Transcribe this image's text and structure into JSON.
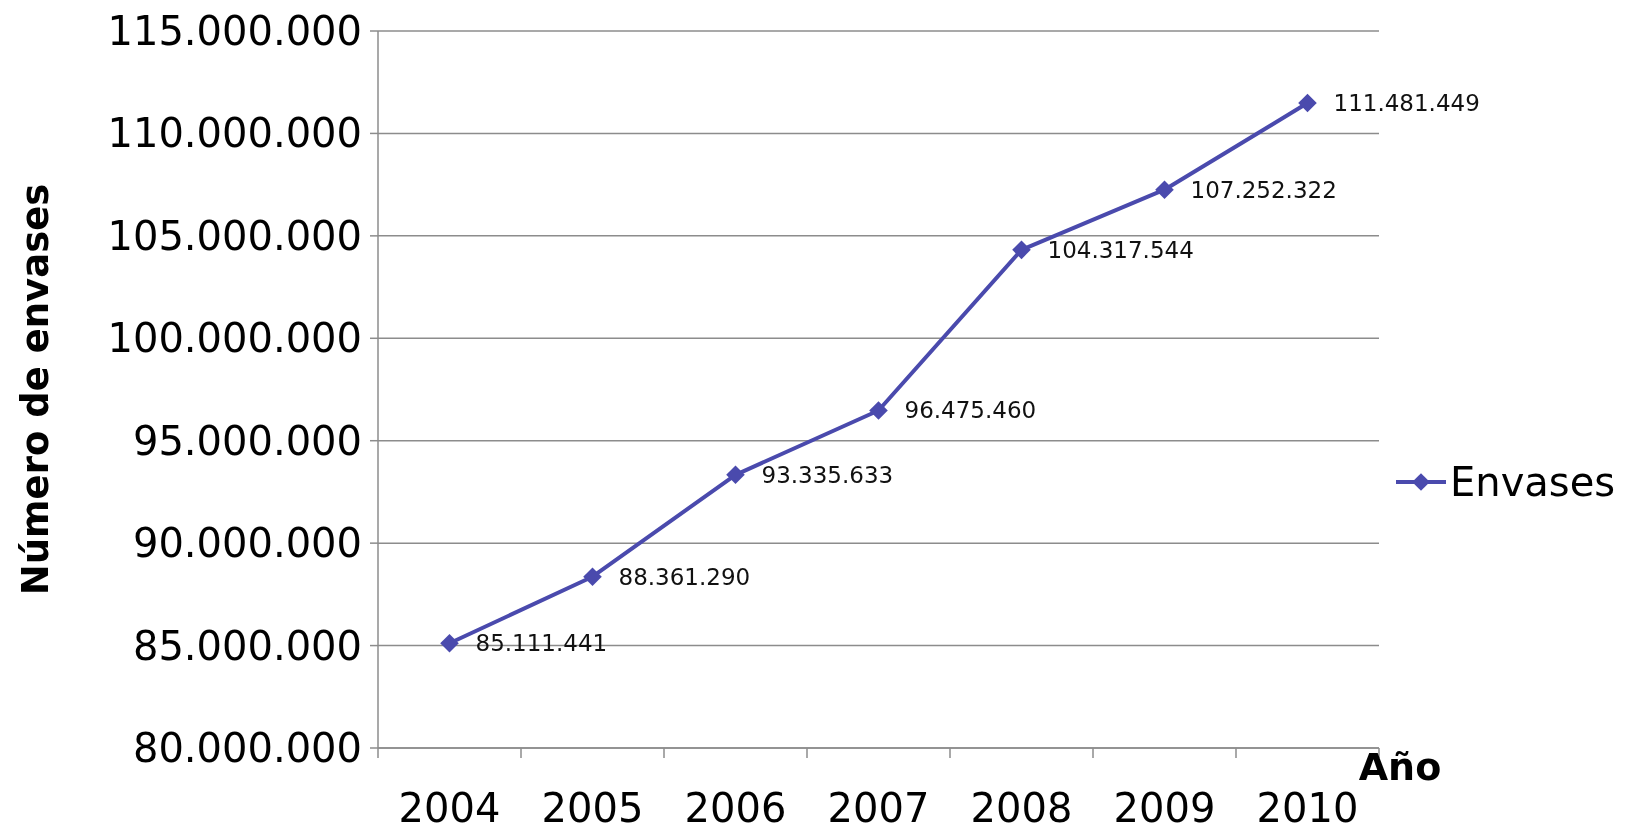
{
  "chart_data": {
    "type": "line",
    "xlabel": "Año",
    "ylabel": "Número de envases",
    "categories": [
      "2004",
      "2005",
      "2006",
      "2007",
      "2008",
      "2009",
      "2010"
    ],
    "series": [
      {
        "name": "Envases",
        "color": "#4a4aad",
        "values": [
          85111441,
          88361290,
          93335633,
          96475460,
          104317544,
          107252322,
          111481449
        ],
        "value_labels": [
          "85.111.441",
          "88.361.290",
          "93.335.633",
          "96.475.460",
          "104.317.544",
          "107.252.322",
          "111.481.449"
        ]
      }
    ],
    "ylim": [
      80000000,
      115000000
    ],
    "yticks": [
      {
        "value": 80000000,
        "label": "80.000.000"
      },
      {
        "value": 85000000,
        "label": "85.000.000"
      },
      {
        "value": 90000000,
        "label": "90.000.000"
      },
      {
        "value": 95000000,
        "label": "95.000.000"
      },
      {
        "value": 100000000,
        "label": "100.000.000"
      },
      {
        "value": 105000000,
        "label": "105.000.000"
      },
      {
        "value": 110000000,
        "label": "110.000.000"
      },
      {
        "value": 115000000,
        "label": "115.000.000"
      }
    ],
    "grid": "y",
    "legend": "right",
    "marker": "diamond",
    "line_style": "solid"
  }
}
